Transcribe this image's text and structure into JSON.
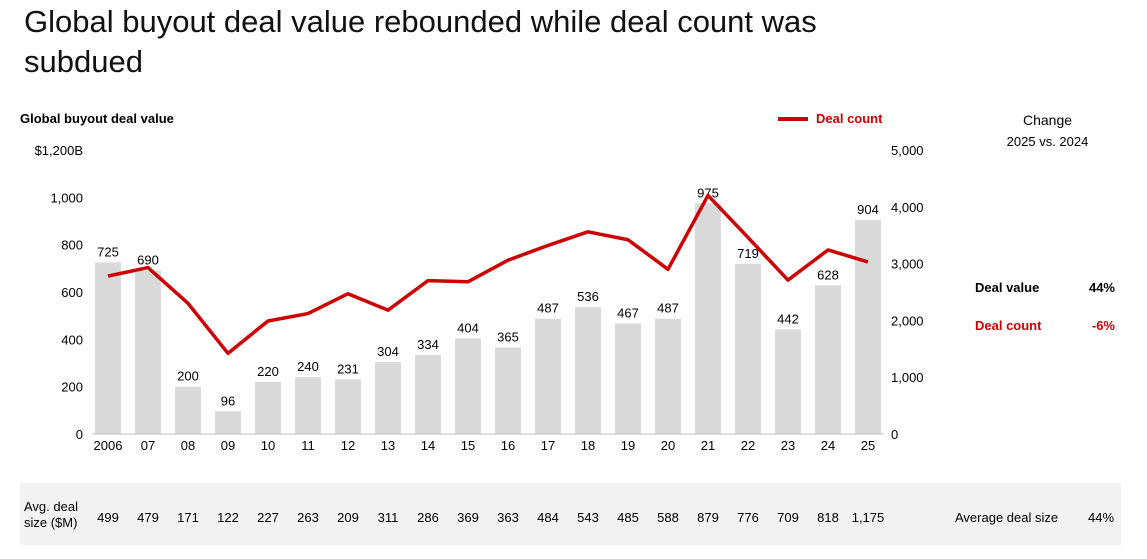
{
  "title": "Global buyout deal value rebounded while deal count was subdued",
  "chart_label": "Global buyout deal value",
  "legend": {
    "deal_count": "Deal count"
  },
  "change": {
    "header": "Change",
    "period": "2025 vs. 2024",
    "deal_value_label": "Deal value",
    "deal_value_pct": "44%",
    "deal_count_label": "Deal count",
    "deal_count_pct": "-6%"
  },
  "avg_deal": {
    "label_line1": "Avg. deal",
    "label_line2": "size ($M)",
    "values": [
      "499",
      "479",
      "171",
      "122",
      "227",
      "263",
      "209",
      "311",
      "286",
      "369",
      "363",
      "484",
      "543",
      "485",
      "588",
      "879",
      "776",
      "709",
      "818",
      "1,175"
    ],
    "summary_label": "Average deal size",
    "summary_pct": "44%"
  },
  "colors": {
    "bar": "#d9d9d9",
    "line": "#cc0000",
    "band": "#f2f2f2"
  },
  "chart_data": {
    "type": "bar+line",
    "categories": [
      "2006",
      "07",
      "08",
      "09",
      "10",
      "11",
      "12",
      "13",
      "14",
      "15",
      "16",
      "17",
      "18",
      "19",
      "20",
      "21",
      "22",
      "23",
      "24",
      "25"
    ],
    "series": [
      {
        "values": [
          725,
          690,
          200,
          96,
          220,
          240,
          231,
          304,
          334,
          404,
          365,
          487,
          536,
          467,
          487,
          975,
          719,
          442,
          628,
          904
        ],
        "axis": "left"
      },
      {
        "name": "Deal count",
        "values": [
          2780,
          2930,
          2300,
          1420,
          1990,
          2120,
          2470,
          2180,
          2700,
          2680,
          3060,
          3320,
          3560,
          3420,
          2900,
          4200,
          3460,
          2710,
          3240,
          3030
        ],
        "axis": "right"
      }
    ],
    "left_axis": {
      "ticks": [
        "0",
        "200",
        "400",
        "600",
        "800",
        "1,000",
        "$1,200B"
      ],
      "range": [
        0,
        1200
      ]
    },
    "right_axis": {
      "ticks": [
        "0",
        "1,000",
        "2,000",
        "3,000",
        "4,000",
        "5,000"
      ],
      "range": [
        0,
        5000
      ]
    },
    "bar_labels": [
      "725",
      "690",
      "200",
      "96",
      "220",
      "240",
      "231",
      "304",
      "334",
      "404",
      "365",
      "487",
      "536",
      "467",
      "487",
      "975",
      "719",
      "442",
      "628",
      "904"
    ],
    "grid": false
  }
}
